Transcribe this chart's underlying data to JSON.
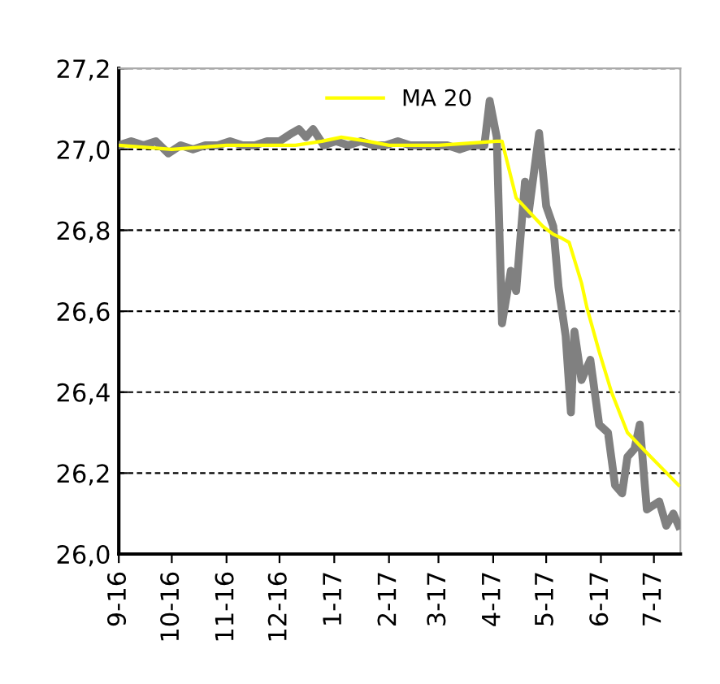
{
  "chart_data": {
    "type": "line",
    "series": [
      {
        "color": "#808080",
        "x": [
          "2016-09-01",
          "2016-09-08",
          "2016-09-15",
          "2016-09-22",
          "2016-09-29",
          "2016-10-06",
          "2016-10-13",
          "2016-10-20",
          "2016-10-27",
          "2016-11-03",
          "2016-11-10",
          "2016-11-17",
          "2016-11-24",
          "2016-12-01",
          "2016-12-08",
          "2016-12-12",
          "2016-12-16",
          "2016-12-20",
          "2016-12-26",
          "2017-01-02",
          "2017-01-09",
          "2017-01-16",
          "2017-01-23",
          "2017-01-30",
          "2017-02-06",
          "2017-02-13",
          "2017-02-20",
          "2017-02-27",
          "2017-03-06",
          "2017-03-13",
          "2017-03-20",
          "2017-03-27",
          "2017-03-30",
          "2017-04-03",
          "2017-04-06",
          "2017-04-11",
          "2017-04-14",
          "2017-04-19",
          "2017-04-21",
          "2017-04-27",
          "2017-05-01",
          "2017-05-05",
          "2017-05-08",
          "2017-05-12",
          "2017-05-15",
          "2017-05-17",
          "2017-05-21",
          "2017-05-26",
          "2017-05-31",
          "2017-06-05",
          "2017-06-09",
          "2017-06-13",
          "2017-06-16",
          "2017-06-20",
          "2017-06-23",
          "2017-06-27",
          "2017-07-04",
          "2017-07-08",
          "2017-07-12",
          "2017-07-15"
        ],
        "values": [
          27.01,
          27.02,
          27.01,
          27.02,
          26.99,
          27.01,
          27.0,
          27.01,
          27.01,
          27.02,
          27.01,
          27.01,
          27.02,
          27.02,
          27.04,
          27.05,
          27.03,
          27.05,
          27.01,
          27.02,
          27.01,
          27.02,
          27.01,
          27.01,
          27.02,
          27.01,
          27.01,
          27.01,
          27.01,
          27.0,
          27.01,
          27.01,
          27.12,
          27.03,
          26.57,
          26.7,
          26.65,
          26.92,
          26.84,
          27.04,
          26.86,
          26.81,
          26.66,
          26.54,
          26.35,
          26.55,
          26.43,
          26.48,
          26.32,
          26.3,
          26.17,
          26.15,
          26.24,
          26.26,
          26.32,
          26.11,
          26.13,
          26.07,
          26.1,
          26.07
        ]
      },
      {
        "name": "MA 20",
        "color": "#ffff00",
        "x": [
          "2016-09-01",
          "2016-10-01",
          "2016-11-01",
          "2016-12-10",
          "2016-12-25",
          "2017-01-05",
          "2017-01-20",
          "2017-02-01",
          "2017-03-01",
          "2017-04-03",
          "2017-04-06",
          "2017-04-14",
          "2017-04-29",
          "2017-05-05",
          "2017-05-10",
          "2017-05-14",
          "2017-05-21",
          "2017-05-24",
          "2017-05-31",
          "2017-06-07",
          "2017-06-16",
          "2017-06-27",
          "2017-07-06",
          "2017-07-15"
        ],
        "values": [
          27.01,
          27.0,
          27.01,
          27.01,
          27.02,
          27.03,
          27.02,
          27.01,
          27.01,
          27.02,
          27.02,
          26.88,
          26.81,
          26.79,
          26.78,
          26.77,
          26.67,
          26.61,
          26.5,
          26.4,
          26.3,
          26.25,
          26.21,
          26.17
        ]
      }
    ],
    "xlim": [
      "2016-09-01",
      "2017-07-16"
    ],
    "xticks": [
      {
        "value": "2016-09-01",
        "label": "9-16"
      },
      {
        "value": "2016-10-01",
        "label": "10-16"
      },
      {
        "value": "2016-11-01",
        "label": "11-16"
      },
      {
        "value": "2016-12-01",
        "label": "12-16"
      },
      {
        "value": "2017-01-01",
        "label": "1-17"
      },
      {
        "value": "2017-02-01",
        "label": "2-17"
      },
      {
        "value": "2017-03-01",
        "label": "3-17"
      },
      {
        "value": "2017-04-01",
        "label": "4-17"
      },
      {
        "value": "2017-05-01",
        "label": "5-17"
      },
      {
        "value": "2017-06-01",
        "label": "6-17"
      },
      {
        "value": "2017-07-01",
        "label": "7-17"
      }
    ],
    "ylim": [
      26.0,
      27.2
    ],
    "yticks": [
      {
        "value": 26.0,
        "label": "26,0"
      },
      {
        "value": 26.2,
        "label": "26,2"
      },
      {
        "value": 26.4,
        "label": "26,4"
      },
      {
        "value": 26.6,
        "label": "26,6"
      },
      {
        "value": 26.8,
        "label": "26,8"
      },
      {
        "value": 27.0,
        "label": "27,0"
      },
      {
        "value": 27.2,
        "label": "27,2"
      }
    ],
    "grid": "y",
    "legend": "top",
    "line_style": "solid",
    "marker": "none"
  }
}
